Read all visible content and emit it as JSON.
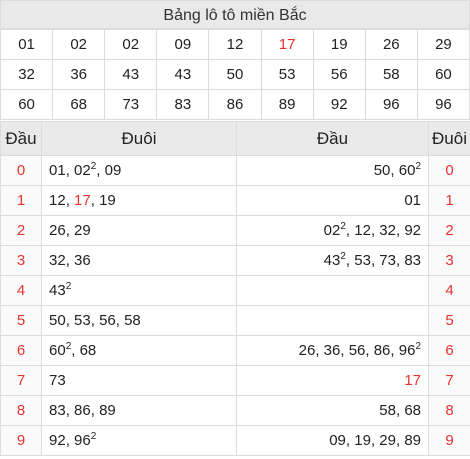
{
  "title": "Bảng lô tô miền Bắc",
  "lo_rows": [
    [
      "01",
      "02",
      "02",
      "09",
      "12",
      "17",
      "19",
      "26",
      "29"
    ],
    [
      "32",
      "36",
      "43",
      "43",
      "50",
      "53",
      "56",
      "58",
      "60"
    ],
    [
      "60",
      "68",
      "73",
      "83",
      "86",
      "89",
      "92",
      "96",
      "96"
    ]
  ],
  "lo_highlight": "17",
  "headers": {
    "dau_left": "Đầu",
    "duoi_left": "Đuôi",
    "dau_right": "Đầu",
    "duoi_right": "Đuôi"
  },
  "rows": [
    {
      "digit": "0",
      "left": [
        {
          "t": "01"
        },
        {
          "t": "02",
          "sup": "2"
        },
        {
          "t": "09"
        }
      ],
      "right": [
        {
          "t": "50"
        },
        {
          "t": "60",
          "sup": "2"
        }
      ]
    },
    {
      "digit": "1",
      "left": [
        {
          "t": "12"
        },
        {
          "t": "17",
          "red": true
        },
        {
          "t": "19"
        }
      ],
      "right": [
        {
          "t": "01"
        }
      ]
    },
    {
      "digit": "2",
      "left": [
        {
          "t": "26"
        },
        {
          "t": "29"
        }
      ],
      "right": [
        {
          "t": "02",
          "sup": "2"
        },
        {
          "t": "12"
        },
        {
          "t": "32"
        },
        {
          "t": "92"
        }
      ]
    },
    {
      "digit": "3",
      "left": [
        {
          "t": "32"
        },
        {
          "t": "36"
        }
      ],
      "right": [
        {
          "t": "43",
          "sup": "2"
        },
        {
          "t": "53"
        },
        {
          "t": "73"
        },
        {
          "t": "83"
        }
      ]
    },
    {
      "digit": "4",
      "left": [
        {
          "t": "43",
          "sup": "2"
        }
      ],
      "right": []
    },
    {
      "digit": "5",
      "left": [
        {
          "t": "50"
        },
        {
          "t": "53"
        },
        {
          "t": "56"
        },
        {
          "t": "58"
        }
      ],
      "right": []
    },
    {
      "digit": "6",
      "left": [
        {
          "t": "60",
          "sup": "2"
        },
        {
          "t": "68"
        }
      ],
      "right": [
        {
          "t": "26"
        },
        {
          "t": "36"
        },
        {
          "t": "56"
        },
        {
          "t": "86"
        },
        {
          "t": "96",
          "sup": "2"
        }
      ]
    },
    {
      "digit": "7",
      "left": [
        {
          "t": "73"
        }
      ],
      "right": [
        {
          "t": "17",
          "red": true
        }
      ]
    },
    {
      "digit": "8",
      "left": [
        {
          "t": "83"
        },
        {
          "t": "86"
        },
        {
          "t": "89"
        }
      ],
      "right": [
        {
          "t": "58"
        },
        {
          "t": "68"
        }
      ]
    },
    {
      "digit": "9",
      "left": [
        {
          "t": "92"
        },
        {
          "t": "96",
          "sup": "2"
        }
      ],
      "right": [
        {
          "t": "09"
        },
        {
          "t": "19"
        },
        {
          "t": "29"
        },
        {
          "t": "89"
        }
      ]
    }
  ],
  "colors": {
    "highlight": "#e3342f",
    "header_bg": "#e9e9e9",
    "border": "#dcdcdc"
  }
}
